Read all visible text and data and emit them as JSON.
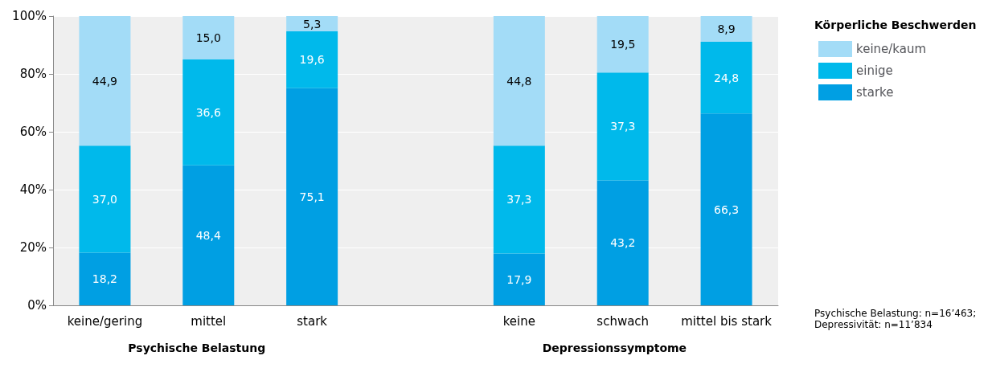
{
  "chart_data": {
    "type": "bar",
    "stacked": true,
    "legend": "top right",
    "legend_title": "Körperliche Beschwerden",
    "grid": "y",
    "categories": [
      "keine/gering",
      "mittel",
      "stark",
      null,
      "keine",
      "schwach",
      "mittel bis stark"
    ],
    "ylim": [
      0,
      100
    ],
    "yticks": [
      {
        "value": 0,
        "label": "0%"
      },
      {
        "value": 20,
        "label": "20%"
      },
      {
        "value": 40,
        "label": "40%"
      },
      {
        "value": 60,
        "label": "60%"
      },
      {
        "value": 80,
        "label": "80%"
      },
      {
        "value": 100,
        "label": "100%"
      }
    ],
    "series": [
      {
        "name": "starke",
        "color": "#009fe3",
        "values": [
          18.2,
          48.4,
          75.1,
          null,
          17.9,
          43.2,
          66.3
        ],
        "value_labels": [
          "18,2",
          "48,4",
          "75,1",
          null,
          "17,9",
          "43,2",
          "66,3"
        ]
      },
      {
        "name": "einige",
        "color": "#00b9eb",
        "values": [
          37.0,
          36.6,
          19.6,
          null,
          37.3,
          37.3,
          24.8
        ],
        "value_labels": [
          "37,0",
          "36,6",
          "19,6",
          null,
          "37,3",
          "37,3",
          "24,8"
        ]
      },
      {
        "name": "keine/kaum",
        "color": "#a3dcf7",
        "values": [
          44.9,
          15.0,
          5.3,
          null,
          44.8,
          19.5,
          8.9
        ],
        "value_labels": [
          "44,9",
          "15,0",
          "5,3",
          null,
          "44,8",
          "19,5",
          "8,9"
        ]
      }
    ],
    "annotations": [
      "Psychische Belastung",
      "Depressionssymptome",
      "Psychische Belastung: n=16’463;\nDepressivität: n=11’834"
    ]
  }
}
